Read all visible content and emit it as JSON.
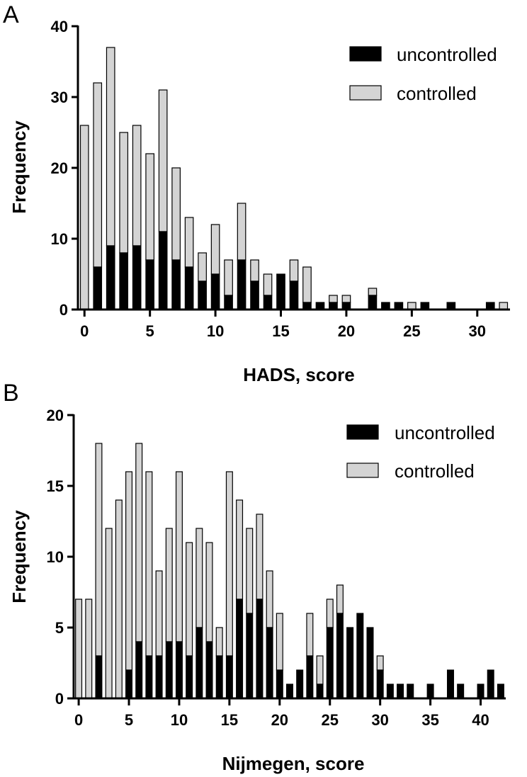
{
  "chart_data": [
    {
      "type": "bar",
      "stacked": true,
      "panel": "A",
      "xlabel": "HADS, score",
      "ylabel": "Frequency",
      "ylim": [
        0,
        40
      ],
      "yticks": [
        0,
        10,
        20,
        30,
        40
      ],
      "xlim": [
        -0.5,
        32.5
      ],
      "xticks": [
        0,
        5,
        10,
        15,
        20,
        25,
        30
      ],
      "legend_position": "top-right",
      "categories": [
        0,
        1,
        2,
        3,
        4,
        5,
        6,
        7,
        8,
        9,
        10,
        11,
        12,
        13,
        14,
        15,
        16,
        17,
        18,
        19,
        20,
        21,
        22,
        23,
        24,
        25,
        26,
        27,
        28,
        29,
        30,
        31,
        32
      ],
      "series": [
        {
          "name": "uncontrolled",
          "color": "#000000",
          "values": [
            0,
            6,
            9,
            8,
            9,
            7,
            11,
            7,
            6,
            4,
            5,
            2,
            7,
            4,
            2,
            5,
            4,
            1,
            1,
            1,
            1,
            0,
            2,
            1,
            1,
            0,
            1,
            0,
            1,
            0,
            0,
            1,
            0
          ]
        },
        {
          "name": "controlled",
          "color": "#d4d4d4",
          "values": [
            26,
            26,
            28,
            17,
            17,
            15,
            20,
            13,
            7,
            4,
            7,
            5,
            8,
            3,
            3,
            0,
            3,
            5,
            0,
            1,
            1,
            0,
            1,
            0,
            0,
            1,
            0,
            0,
            0,
            0,
            0,
            0,
            1
          ]
        }
      ]
    },
    {
      "type": "bar",
      "stacked": true,
      "panel": "B",
      "xlabel": "Nijmegen, score",
      "ylabel": "Frequency",
      "ylim": [
        0,
        20
      ],
      "yticks": [
        0,
        5,
        10,
        15,
        20
      ],
      "xlim": [
        -0.5,
        42.5
      ],
      "xticks": [
        0,
        5,
        10,
        15,
        20,
        25,
        30,
        35,
        40
      ],
      "legend_position": "top-right",
      "categories": [
        0,
        1,
        2,
        3,
        4,
        5,
        6,
        7,
        8,
        9,
        10,
        11,
        12,
        13,
        14,
        15,
        16,
        17,
        18,
        19,
        20,
        21,
        22,
        23,
        24,
        25,
        26,
        27,
        28,
        29,
        30,
        31,
        32,
        33,
        34,
        35,
        36,
        37,
        38,
        39,
        40,
        41,
        42
      ],
      "series": [
        {
          "name": "uncontrolled",
          "color": "#000000",
          "values": [
            0,
            0,
            3,
            0,
            0,
            2,
            4,
            3,
            3,
            4,
            4,
            3,
            5,
            4,
            3,
            3,
            7,
            6,
            7,
            5,
            2,
            1,
            2,
            3,
            1,
            5,
            6,
            5,
            6,
            5,
            2,
            1,
            1,
            1,
            0,
            1,
            0,
            2,
            1,
            0,
            1,
            2,
            1
          ]
        },
        {
          "name": "controlled",
          "color": "#d4d4d4",
          "values": [
            7,
            7,
            15,
            12,
            14,
            14,
            14,
            13,
            6,
            8,
            12,
            8,
            7,
            7,
            2,
            13,
            7,
            6,
            6,
            4,
            4,
            0,
            0,
            3,
            2,
            2,
            2,
            0,
            0,
            0,
            1,
            0,
            0,
            0,
            0,
            0,
            0,
            0,
            0,
            0,
            0,
            0,
            0
          ]
        }
      ]
    }
  ]
}
